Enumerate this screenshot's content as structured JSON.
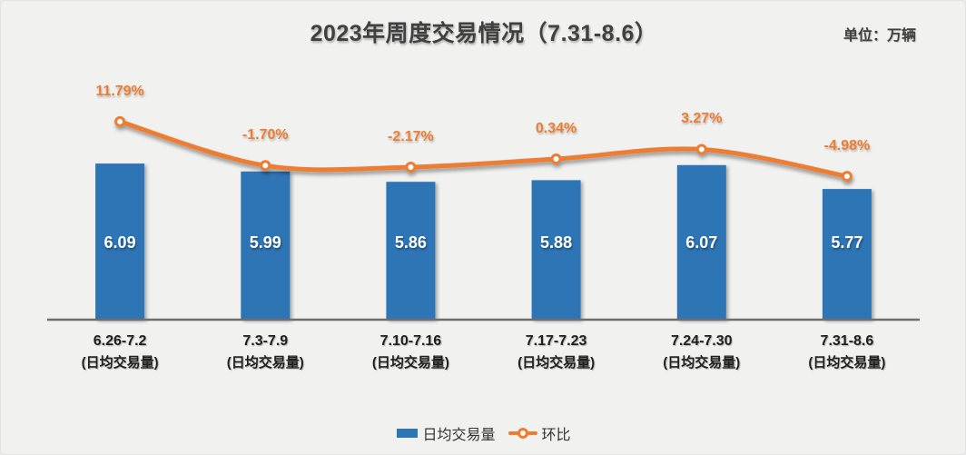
{
  "header": {
    "title": "2023年周度交易情况（7.31-8.6）",
    "unit_label": "单位：万辆"
  },
  "colors": {
    "bar": "#2e75b6",
    "line": "#ed7d31",
    "marker_fill": "#ffffff",
    "axis_line": "#6e6e6e",
    "background": "#f1f1f0",
    "title_text": "#404040",
    "bar_label_text": "#ffffff"
  },
  "chart_data": {
    "type": "bar+line",
    "title": "2023年周度交易情况（7.31-8.6）",
    "unit": "万辆",
    "categories": [
      "6.26-7.2",
      "7.3-7.9",
      "7.10-7.16",
      "7.17-7.23",
      "7.24-7.30",
      "7.31-8.6"
    ],
    "category_sublabel": "(日均交易量)",
    "series": [
      {
        "name": "日均交易量",
        "type": "bar",
        "color": "#2e75b6",
        "values": [
          6.09,
          5.99,
          5.86,
          5.88,
          6.07,
          5.77
        ],
        "labels": [
          "6.09",
          "5.99",
          "5.86",
          "5.88",
          "6.07",
          "5.77"
        ]
      },
      {
        "name": "环比",
        "type": "line",
        "color": "#ed7d31",
        "unit": "%",
        "values": [
          11.79,
          -1.7,
          -2.17,
          0.34,
          3.27,
          -4.98
        ],
        "labels": [
          "11.79%",
          "-1.70%",
          "-2.17%",
          "0.34%",
          "3.27%",
          "-4.98%"
        ]
      }
    ],
    "legend_position": "bottom",
    "grid": false,
    "y_axis_visible": false,
    "bar_axis_implied_range": [
      4.1,
      7.6
    ]
  },
  "legend": {
    "items": [
      {
        "label": "日均交易量",
        "swatch": "bar"
      },
      {
        "label": "环比",
        "swatch": "line"
      }
    ]
  }
}
